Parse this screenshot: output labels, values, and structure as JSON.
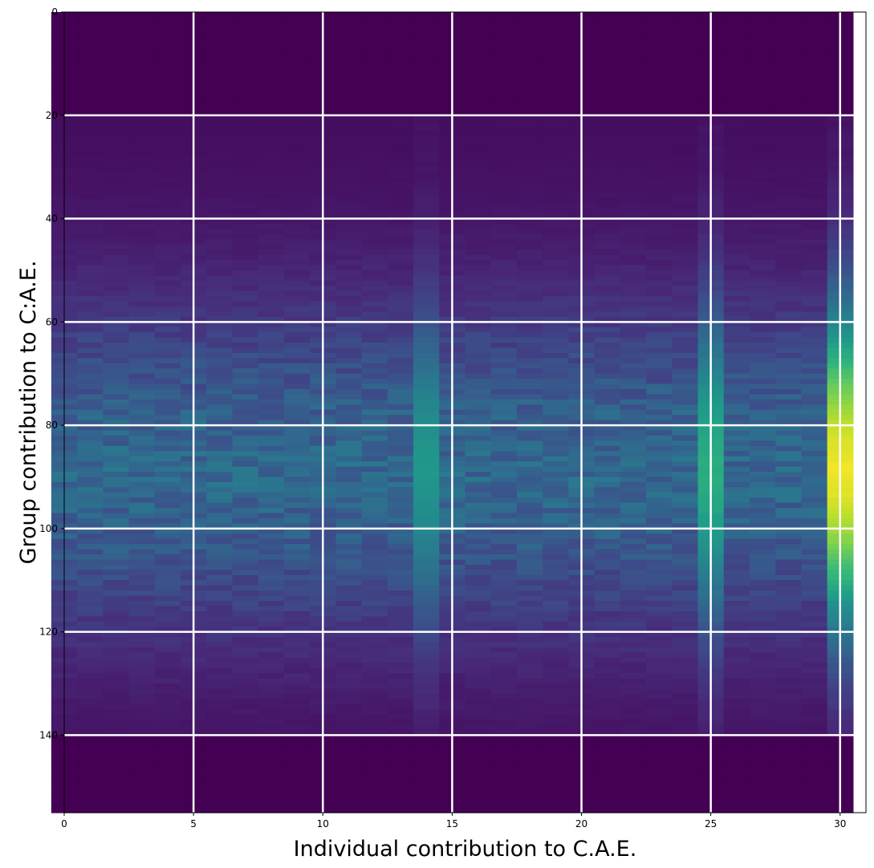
{
  "chart_data": {
    "type": "heatmap",
    "xlabel": "Individual contribution to C.A.E.",
    "ylabel": "Group contribution to C:A.E.",
    "xlim": [
      0,
      31
    ],
    "ylim": [
      155,
      0
    ],
    "xticks": [
      0,
      5,
      10,
      15,
      20,
      25,
      30
    ],
    "yticks": [
      0,
      20,
      40,
      60,
      80,
      100,
      120,
      140
    ],
    "grid": true,
    "grid_color": "#ffffff",
    "colormap": "viridis",
    "n_columns": 31,
    "n_rows": 155,
    "cell_columns": [
      0,
      30
    ],
    "hot_columns": [
      {
        "x": 14,
        "strength": 1.6
      },
      {
        "x": 25,
        "strength": 1.9
      },
      {
        "x": 30,
        "strength": 3.1
      }
    ],
    "intensity_band": {
      "center_row": 88,
      "half_width_rows": 30,
      "active_rows": [
        20,
        140
      ]
    }
  }
}
